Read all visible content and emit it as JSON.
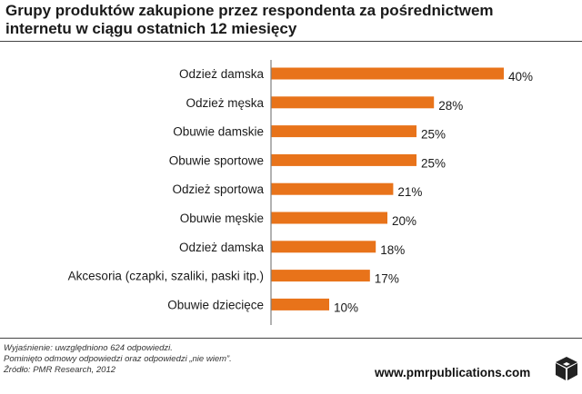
{
  "title": "Grupy produktów zakupione przez respondenta za pośrednictwem internetu w ciągu ostatnich 12 miesięcy",
  "chart_data": {
    "type": "bar",
    "orientation": "horizontal",
    "title": "Grupy produktów zakupione przez respondenta za pośrednictwem internetu w ciągu ostatnich 12 miesięcy",
    "categories": [
      "Odzież damska",
      "Odzież męska",
      "Obuwie damskie",
      "Obuwie sportowe",
      "Odzież sportowa",
      "Obuwie męskie",
      "Odzież damska",
      "Akcesoria (czapki, szaliki, paski itp.)",
      "Obuwie dziecięce"
    ],
    "values": [
      40,
      28,
      25,
      25,
      21,
      20,
      18,
      17,
      10
    ],
    "value_labels": [
      "40%",
      "28%",
      "25%",
      "25%",
      "21%",
      "20%",
      "18%",
      "17%",
      "10%"
    ],
    "unit": "%",
    "xlim": [
      0,
      40
    ],
    "bar_color": "#e8731a",
    "axis_color": "#7f7f7f",
    "grid": false
  },
  "footnotes": {
    "line1": "Wyjaśnienie: uwzględniono 624 odpowiedzi.",
    "line2": "Pominięto odmowy odpowiedzi oraz odpowiedzi „nie wiem”.",
    "line3": "Źródło: PMR Research, 2012"
  },
  "footer": {
    "website": "www.pmrpublications.com",
    "logo_icon": "pmr-cube-icon"
  }
}
